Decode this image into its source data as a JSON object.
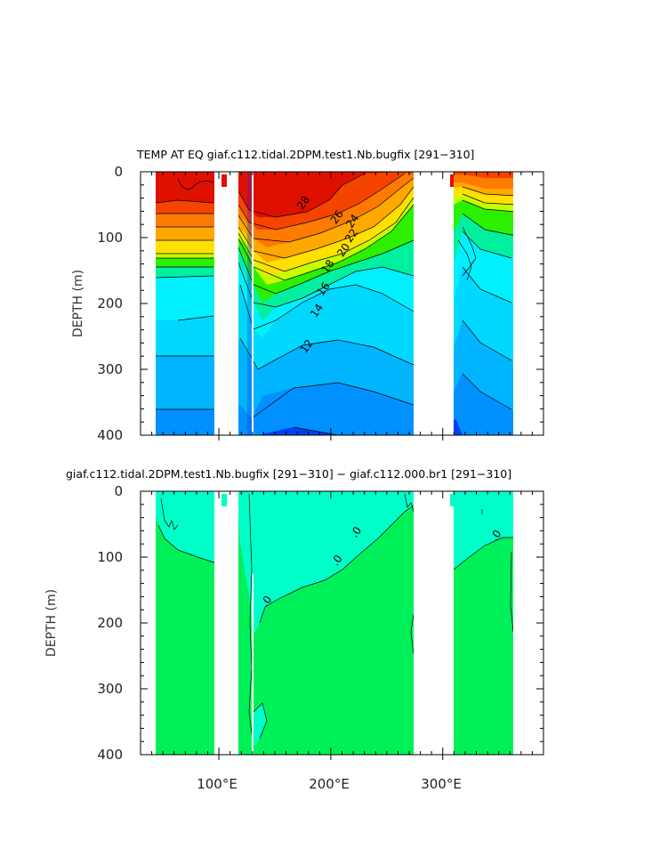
{
  "chart_data": [
    {
      "type": "heatmap",
      "title": "TEMP AT EQ giaf.c112.tidal.2DPM.test1.Nb.bugfix [291−310]",
      "ylabel": "DEPTH (m)",
      "yticks": [
        "0",
        "100",
        "200",
        "300",
        "400"
      ],
      "ylim": [
        400,
        0
      ],
      "xlim": [
        30,
        390
      ],
      "xticks": [],
      "contour_labels": [
        {
          "text": "28",
          "x": 178,
          "y": 50
        },
        {
          "text": "26",
          "x": 208,
          "y": 72
        },
        {
          "text": "24",
          "x": 222,
          "y": 78
        },
        {
          "text": "22",
          "x": 221,
          "y": 100
        },
        {
          "text": "20",
          "x": 214,
          "y": 122
        },
        {
          "text": "18",
          "x": 200,
          "y": 147
        },
        {
          "text": "16",
          "x": 196,
          "y": 181
        },
        {
          "text": "14",
          "x": 190,
          "y": 214
        },
        {
          "text": "12",
          "x": 181,
          "y": 268
        }
      ],
      "colors": {
        "gt28": "#e01000",
        "t26_28": "#f54400",
        "t24_26": "#ff7a00",
        "t22_24": "#ffa800",
        "t20_22": "#ffe000",
        "t18_20": "#c8ff00",
        "t16_18": "#2cf000",
        "t14_16": "#00f0a0",
        "t12_14": "#00f0ff",
        "t10_12": "#00d8ff",
        "t8_10": "#00b4ff",
        "t6_8": "#0090ff",
        "lt6": "#0040f0"
      }
    },
    {
      "type": "heatmap",
      "title": "giaf.c112.tidal.2DPM.test1.Nb.bugfix [291−310] − giaf.c112.000.br1 [291−310]",
      "ylabel": "DEPTH (m)",
      "yticks": [
        "0",
        "100",
        "200",
        "300",
        "400"
      ],
      "ylim": [
        400,
        0
      ],
      "xlim": [
        30,
        390
      ],
      "xticks": [
        "100°E",
        "200°E",
        "300°E"
      ],
      "xtick_values": [
        100,
        200,
        300
      ],
      "contour_labels": [
        {
          "text": ".0",
          "x": 225,
          "y": 65
        },
        {
          "text": ".0",
          "x": 208,
          "y": 108
        },
        {
          "text": ".0",
          "x": 145,
          "y": 170
        },
        {
          "text": ".0",
          "x": 350,
          "y": 70
        }
      ],
      "colors": {
        "positive": "#00ffc8",
        "negative": "#00f05a"
      }
    }
  ]
}
